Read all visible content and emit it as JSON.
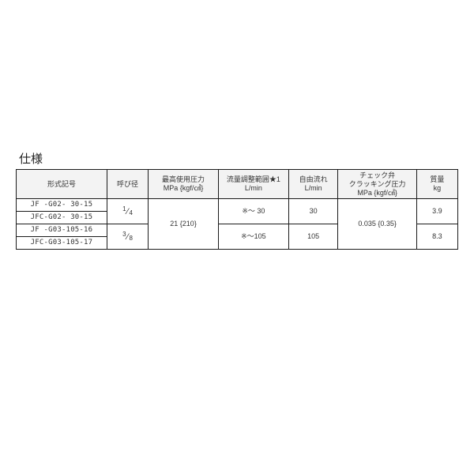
{
  "section_title": "仕様",
  "headers": {
    "model": "形式記号",
    "size": "呼び径",
    "max_press": "最高使用圧力",
    "max_press_unit": "MPa {kgf/㎠}",
    "flow_range": "流量調整範囲★1",
    "flow_range_unit": "L/min",
    "free_flow": "自由流れ",
    "free_flow_unit": "L/min",
    "cracking": "チェック弁",
    "cracking2": "クラッキング圧力",
    "cracking_unit": "MPa {kgf/㎠}",
    "mass": "質量",
    "mass_unit": "kg"
  },
  "rows": [
    {
      "model": "JF  -G02-  30-15"
    },
    {
      "model": "JFC-G02-  30-15"
    },
    {
      "model": "JF  -G03-105-16"
    },
    {
      "model": "JFC-G03-105-17"
    }
  ],
  "size_frac": [
    {
      "num": "1",
      "den": "4"
    },
    {
      "num": "3",
      "den": "8"
    }
  ],
  "max_press_val": "21 {210}",
  "flow_range_vals": [
    "※～  30",
    "※～105"
  ],
  "free_flow_vals": [
    "30",
    "105"
  ],
  "cracking_val": "0.035 {0.35}",
  "mass_vals": [
    "3.9",
    "8.3"
  ],
  "colors": {
    "border": "#1a1a1a",
    "header_bg": "#f3f3f3",
    "text": "#333333",
    "bg": "#ffffff"
  }
}
